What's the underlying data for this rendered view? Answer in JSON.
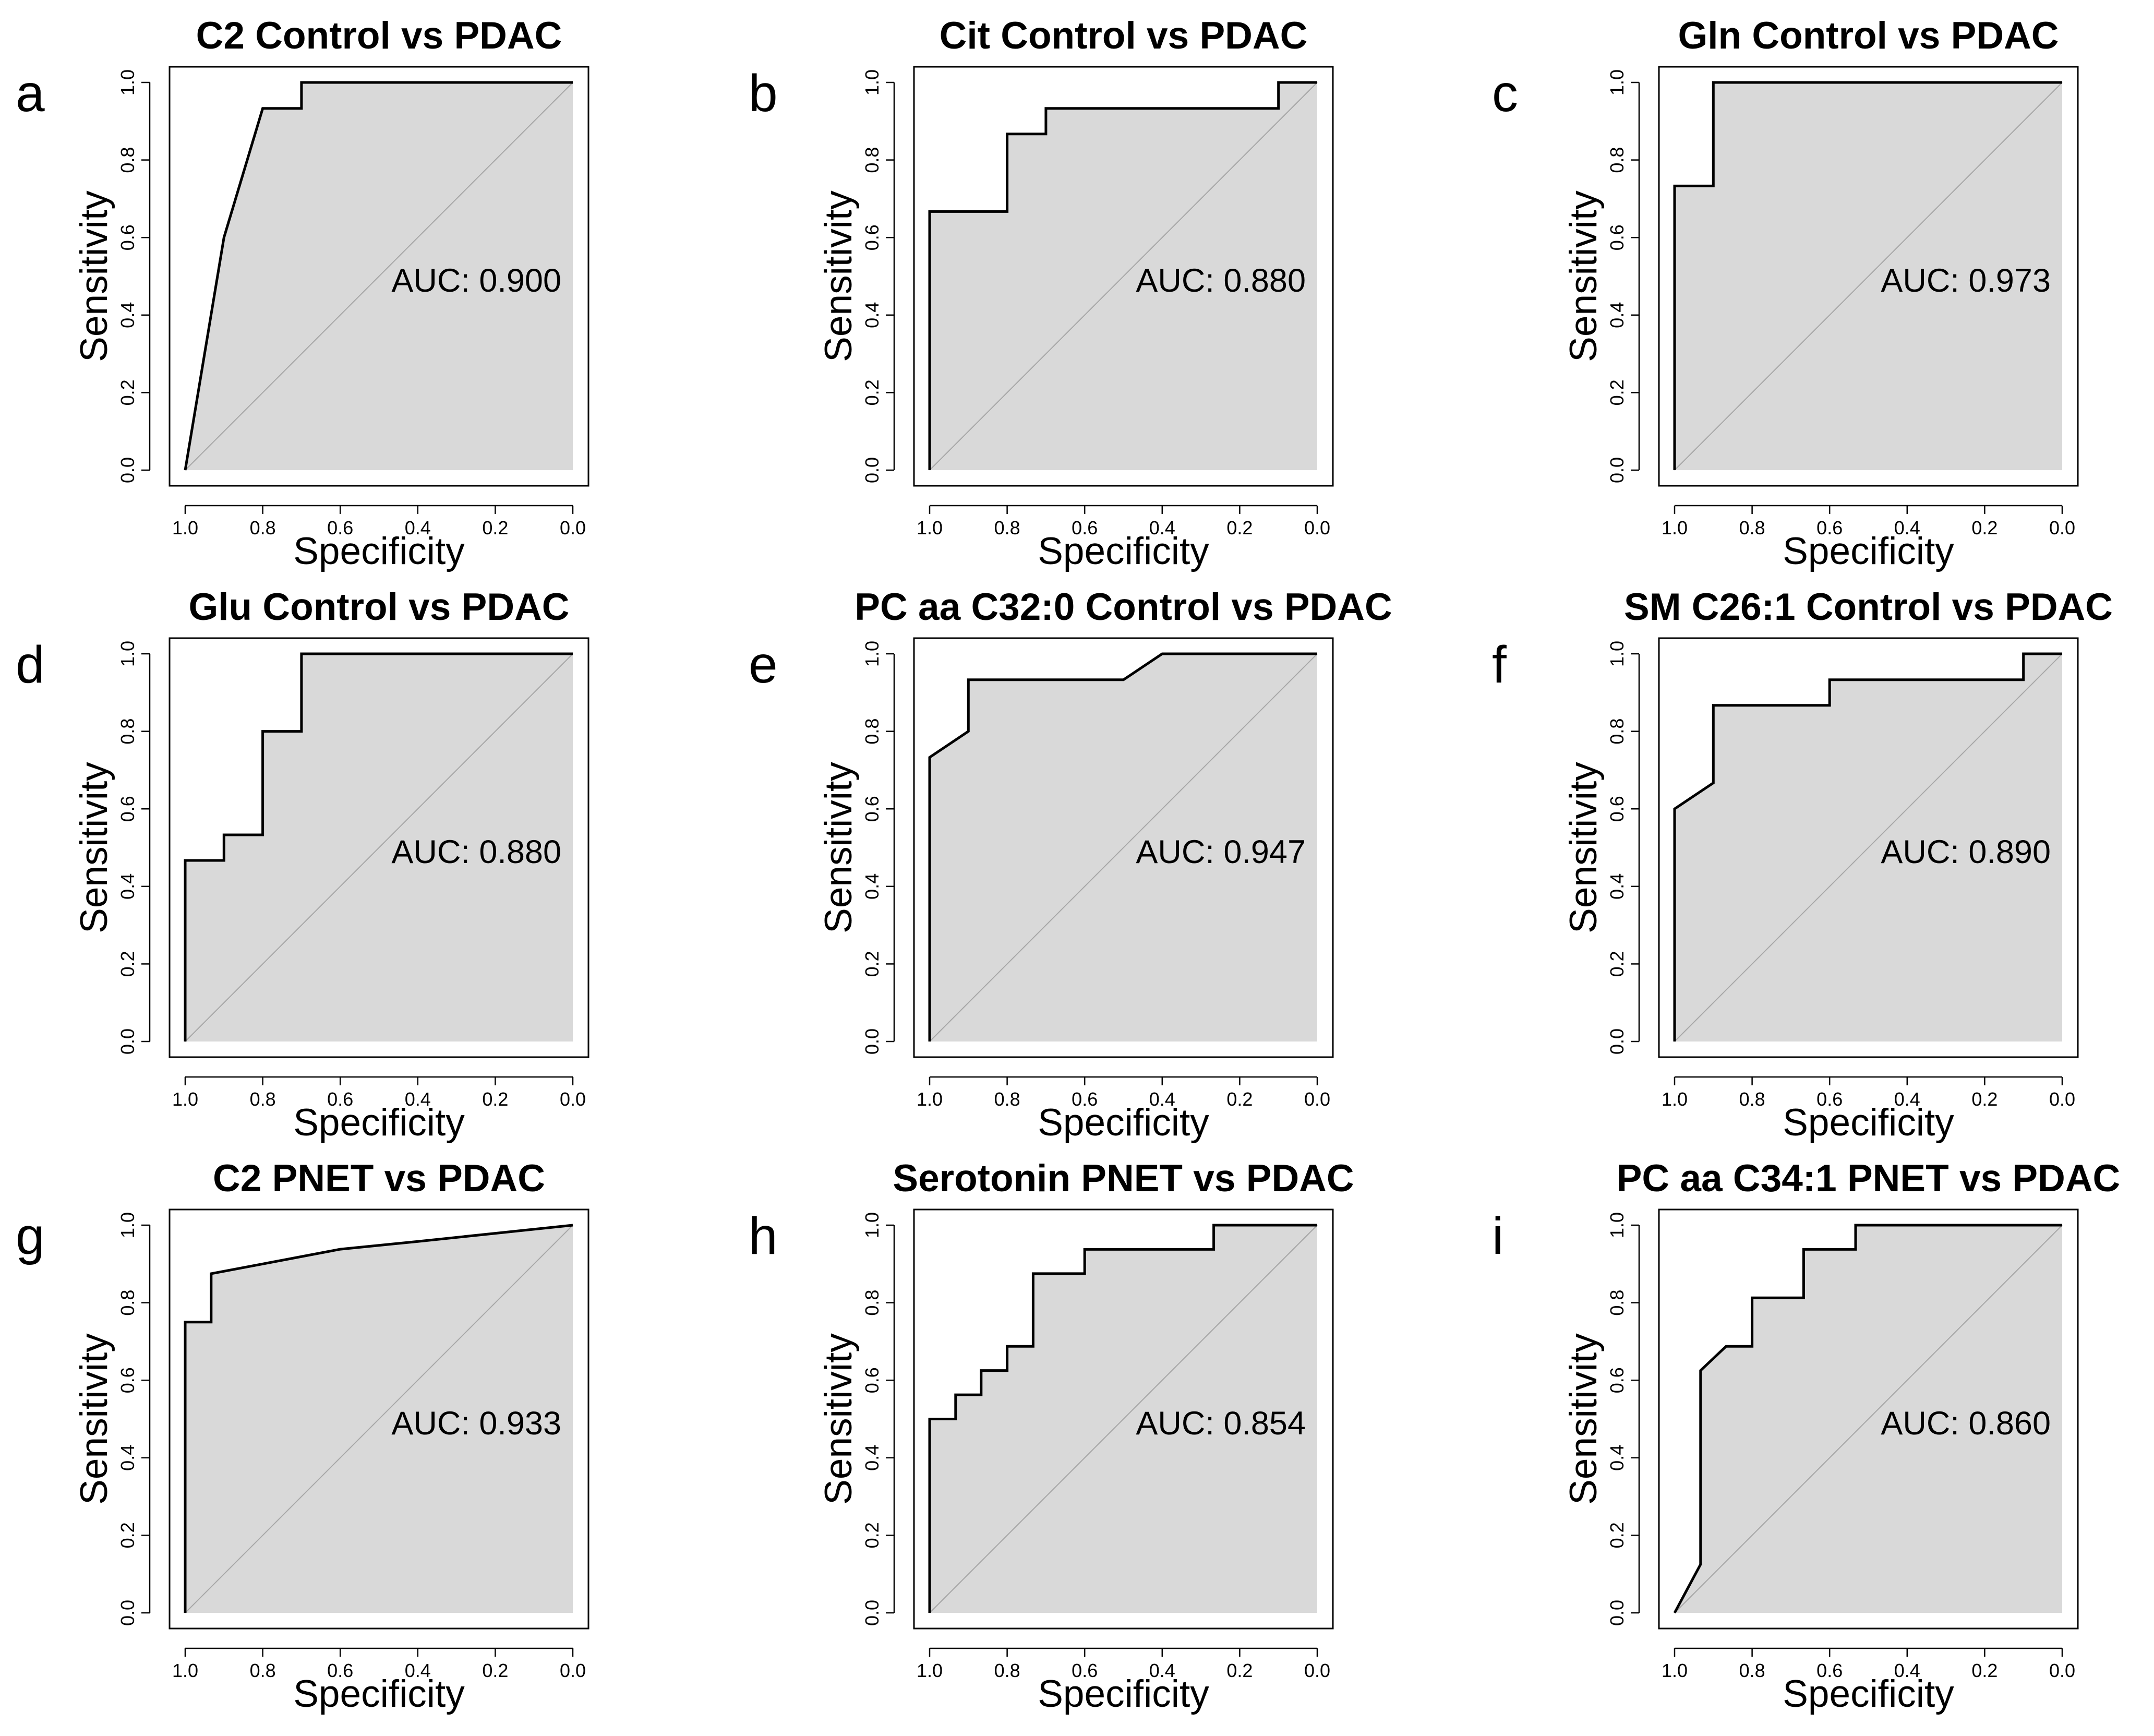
{
  "figure": {
    "background": "#ffffff"
  },
  "style": {
    "area_fill": "#d9d9d9",
    "curve_color": "#000000",
    "diagonal_color": "#a6a6a6",
    "frame_color": "#000000"
  },
  "chart_data": [
    {
      "type": "line",
      "panel": "a",
      "title": "C2 Control vs PDAC",
      "xlabel": "Specificity",
      "ylabel": "Sensitivity",
      "xlim": [
        1.0,
        0.0
      ],
      "ylim": [
        0.0,
        1.0
      ],
      "xticks": [
        "1.0",
        "0.8",
        "0.6",
        "0.4",
        "0.2",
        "0.0"
      ],
      "yticks": [
        "0.0",
        "0.2",
        "0.4",
        "0.6",
        "0.8",
        "1.0"
      ],
      "auc_label": "AUC: 0.900",
      "series": [
        {
          "name": "ROC",
          "specificity": [
            1.0,
            0.9,
            0.8,
            0.7,
            0.7,
            0.0
          ],
          "sensitivity": [
            0.0,
            0.6,
            0.933,
            0.933,
            1.0,
            1.0
          ]
        }
      ]
    },
    {
      "type": "line",
      "panel": "b",
      "title": "Cit Control vs PDAC",
      "xlabel": "Specificity",
      "ylabel": "Sensitivity",
      "xlim": [
        1.0,
        0.0
      ],
      "ylim": [
        0.0,
        1.0
      ],
      "xticks": [
        "1.0",
        "0.8",
        "0.6",
        "0.4",
        "0.2",
        "0.0"
      ],
      "yticks": [
        "0.0",
        "0.2",
        "0.4",
        "0.6",
        "0.8",
        "1.0"
      ],
      "auc_label": "AUC: 0.880",
      "series": [
        {
          "name": "ROC",
          "specificity": [
            1.0,
            1.0,
            0.8,
            0.8,
            0.7,
            0.7,
            0.1,
            0.1,
            0.0
          ],
          "sensitivity": [
            0.0,
            0.667,
            0.667,
            0.867,
            0.867,
            0.933,
            0.933,
            1.0,
            1.0
          ]
        }
      ]
    },
    {
      "type": "line",
      "panel": "c",
      "title": "Gln Control vs PDAC",
      "xlabel": "Specificity",
      "ylabel": "Sensitivity",
      "xlim": [
        1.0,
        0.0
      ],
      "ylim": [
        0.0,
        1.0
      ],
      "xticks": [
        "1.0",
        "0.8",
        "0.6",
        "0.4",
        "0.2",
        "0.0"
      ],
      "yticks": [
        "0.0",
        "0.2",
        "0.4",
        "0.6",
        "0.8",
        "1.0"
      ],
      "auc_label": "AUC: 0.973",
      "series": [
        {
          "name": "ROC",
          "specificity": [
            1.0,
            1.0,
            0.9,
            0.9,
            0.0
          ],
          "sensitivity": [
            0.0,
            0.733,
            0.733,
            1.0,
            1.0
          ]
        }
      ]
    },
    {
      "type": "line",
      "panel": "d",
      "title": "Glu Control vs PDAC",
      "xlabel": "Specificity",
      "ylabel": "Sensitivity",
      "xlim": [
        1.0,
        0.0
      ],
      "ylim": [
        0.0,
        1.0
      ],
      "xticks": [
        "1.0",
        "0.8",
        "0.6",
        "0.4",
        "0.2",
        "0.0"
      ],
      "yticks": [
        "0.0",
        "0.2",
        "0.4",
        "0.6",
        "0.8",
        "1.0"
      ],
      "auc_label": "AUC: 0.880",
      "series": [
        {
          "name": "ROC",
          "specificity": [
            1.0,
            1.0,
            0.9,
            0.9,
            0.8,
            0.8,
            0.7,
            0.7,
            0.0
          ],
          "sensitivity": [
            0.0,
            0.467,
            0.467,
            0.533,
            0.533,
            0.8,
            0.8,
            1.0,
            1.0
          ]
        }
      ]
    },
    {
      "type": "line",
      "panel": "e",
      "title": "PC aa C32:0 Control vs PDAC",
      "xlabel": "Specificity",
      "ylabel": "Sensitivity",
      "xlim": [
        1.0,
        0.0
      ],
      "ylim": [
        0.0,
        1.0
      ],
      "xticks": [
        "1.0",
        "0.8",
        "0.6",
        "0.4",
        "0.2",
        "0.0"
      ],
      "yticks": [
        "0.0",
        "0.2",
        "0.4",
        "0.6",
        "0.8",
        "1.0"
      ],
      "auc_label": "AUC: 0.947",
      "series": [
        {
          "name": "ROC",
          "specificity": [
            1.0,
            1.0,
            0.9,
            0.9,
            0.5,
            0.4,
            0.0
          ],
          "sensitivity": [
            0.0,
            0.733,
            0.8,
            0.933,
            0.933,
            1.0,
            1.0
          ]
        }
      ]
    },
    {
      "type": "line",
      "panel": "f",
      "title": "SM C26:1 Control vs PDAC",
      "xlabel": "Specificity",
      "ylabel": "Sensitivity",
      "xlim": [
        1.0,
        0.0
      ],
      "ylim": [
        0.0,
        1.0
      ],
      "xticks": [
        "1.0",
        "0.8",
        "0.6",
        "0.4",
        "0.2",
        "0.0"
      ],
      "yticks": [
        "0.0",
        "0.2",
        "0.4",
        "0.6",
        "0.8",
        "1.0"
      ],
      "auc_label": "AUC: 0.890",
      "series": [
        {
          "name": "ROC",
          "specificity": [
            1.0,
            1.0,
            0.9,
            0.9,
            0.6,
            0.6,
            0.1,
            0.1,
            0.0
          ],
          "sensitivity": [
            0.0,
            0.6,
            0.667,
            0.867,
            0.867,
            0.933,
            0.933,
            1.0,
            1.0
          ]
        }
      ]
    },
    {
      "type": "line",
      "panel": "g",
      "title": "C2 PNET vs PDAC",
      "xlabel": "Specificity",
      "ylabel": "Sensitivity",
      "xlim": [
        1.0,
        0.0
      ],
      "ylim": [
        0.0,
        1.0
      ],
      "xticks": [
        "1.0",
        "0.8",
        "0.6",
        "0.4",
        "0.2",
        "0.0"
      ],
      "yticks": [
        "0.0",
        "0.2",
        "0.4",
        "0.6",
        "0.8",
        "1.0"
      ],
      "auc_label": "AUC: 0.933",
      "series": [
        {
          "name": "ROC",
          "specificity": [
            1.0,
            1.0,
            0.933,
            0.933,
            0.8,
            0.6,
            0.4,
            0.2,
            0.0
          ],
          "sensitivity": [
            0.0,
            0.75,
            0.75,
            0.875,
            0.9,
            0.938,
            0.958,
            0.979,
            1.0
          ]
        }
      ]
    },
    {
      "type": "line",
      "panel": "h",
      "title": "Serotonin PNET vs PDAC",
      "xlabel": "Specificity",
      "ylabel": "Sensitivity",
      "xlim": [
        1.0,
        0.0
      ],
      "ylim": [
        0.0,
        1.0
      ],
      "xticks": [
        "1.0",
        "0.8",
        "0.6",
        "0.4",
        "0.2",
        "0.0"
      ],
      "yticks": [
        "0.0",
        "0.2",
        "0.4",
        "0.6",
        "0.8",
        "1.0"
      ],
      "auc_label": "AUC: 0.854",
      "series": [
        {
          "name": "ROC",
          "specificity": [
            1.0,
            1.0,
            0.933,
            0.933,
            0.867,
            0.867,
            0.8,
            0.8,
            0.733,
            0.733,
            0.6,
            0.6,
            0.267,
            0.267,
            0.0
          ],
          "sensitivity": [
            0.0,
            0.5,
            0.5,
            0.5625,
            0.5625,
            0.625,
            0.625,
            0.6875,
            0.6875,
            0.875,
            0.875,
            0.9375,
            0.9375,
            1.0,
            1.0
          ]
        }
      ]
    },
    {
      "type": "line",
      "panel": "i",
      "title": "PC aa C34:1 PNET vs PDAC",
      "xlabel": "Specificity",
      "ylabel": "Sensitivity",
      "xlim": [
        1.0,
        0.0
      ],
      "ylim": [
        0.0,
        1.0
      ],
      "xticks": [
        "1.0",
        "0.8",
        "0.6",
        "0.4",
        "0.2",
        "0.0"
      ],
      "yticks": [
        "0.0",
        "0.2",
        "0.4",
        "0.6",
        "0.8",
        "1.0"
      ],
      "auc_label": "AUC: 0.860",
      "series": [
        {
          "name": "ROC",
          "specificity": [
            1.0,
            0.933,
            0.933,
            0.867,
            0.8,
            0.8,
            0.667,
            0.667,
            0.533,
            0.533,
            0.0
          ],
          "sensitivity": [
            0.0,
            0.125,
            0.625,
            0.6875,
            0.6875,
            0.8125,
            0.8125,
            0.9375,
            0.9375,
            1.0,
            1.0
          ]
        }
      ]
    }
  ]
}
